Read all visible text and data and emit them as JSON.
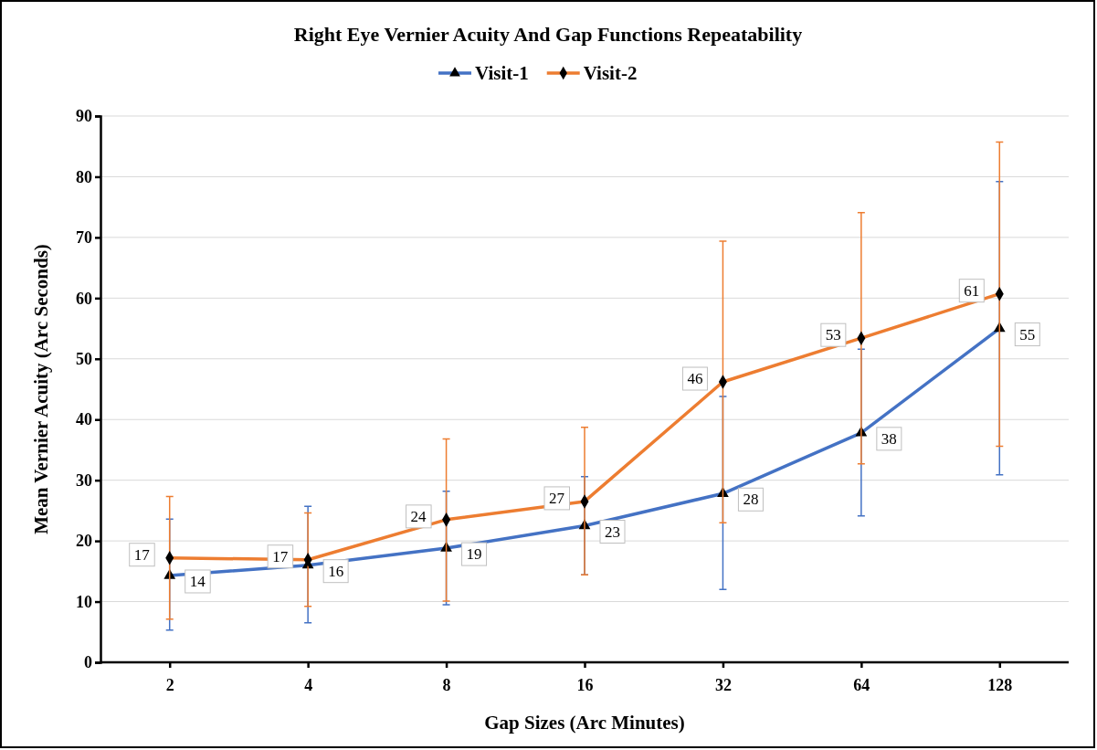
{
  "chart_data": {
    "type": "line",
    "title": "Right Eye Vernier Acuity And Gap Functions Repeatability",
    "xlabel": "Gap Sizes (Arc Minutes)",
    "ylabel": "Mean Vernier Acuity (Arc Seconds)",
    "categories": [
      "2",
      "4",
      "8",
      "16",
      "32",
      "64",
      "128"
    ],
    "ylim": [
      0,
      90
    ],
    "yticks": [
      0,
      10,
      20,
      30,
      40,
      50,
      60,
      70,
      80,
      90
    ],
    "grid": "y",
    "legend": "top",
    "series": [
      {
        "name": "Visit-1",
        "color": "#4472c4",
        "marker": "triangle",
        "values": [
          14.3,
          16,
          18.8,
          22.5,
          27.8,
          37.8,
          55
        ],
        "value_labels": [
          "14",
          "16",
          "19",
          "23",
          "28",
          "38",
          "55"
        ],
        "errors": [
          [
            5.3,
            23.6
          ],
          [
            6.5,
            25.7
          ],
          [
            9.5,
            28.2
          ],
          [
            14.4,
            30.6
          ],
          [
            12,
            43.8
          ],
          [
            24.1,
            51.6
          ],
          [
            30.9,
            79.2
          ]
        ]
      },
      {
        "name": "Visit-2",
        "color": "#ed7d31",
        "marker": "diamond",
        "values": [
          17.2,
          16.9,
          23.5,
          26.5,
          46.2,
          53.4,
          60.7
        ],
        "value_labels": [
          "17",
          "17",
          "24",
          "27",
          "46",
          "53",
          "61"
        ],
        "errors": [
          [
            7.1,
            27.3
          ],
          [
            9.2,
            24.6
          ],
          [
            10.1,
            36.8
          ],
          [
            14.4,
            38.7
          ],
          [
            23,
            69.4
          ],
          [
            32.7,
            74.1
          ],
          [
            35.6,
            85.7
          ]
        ]
      }
    ]
  }
}
